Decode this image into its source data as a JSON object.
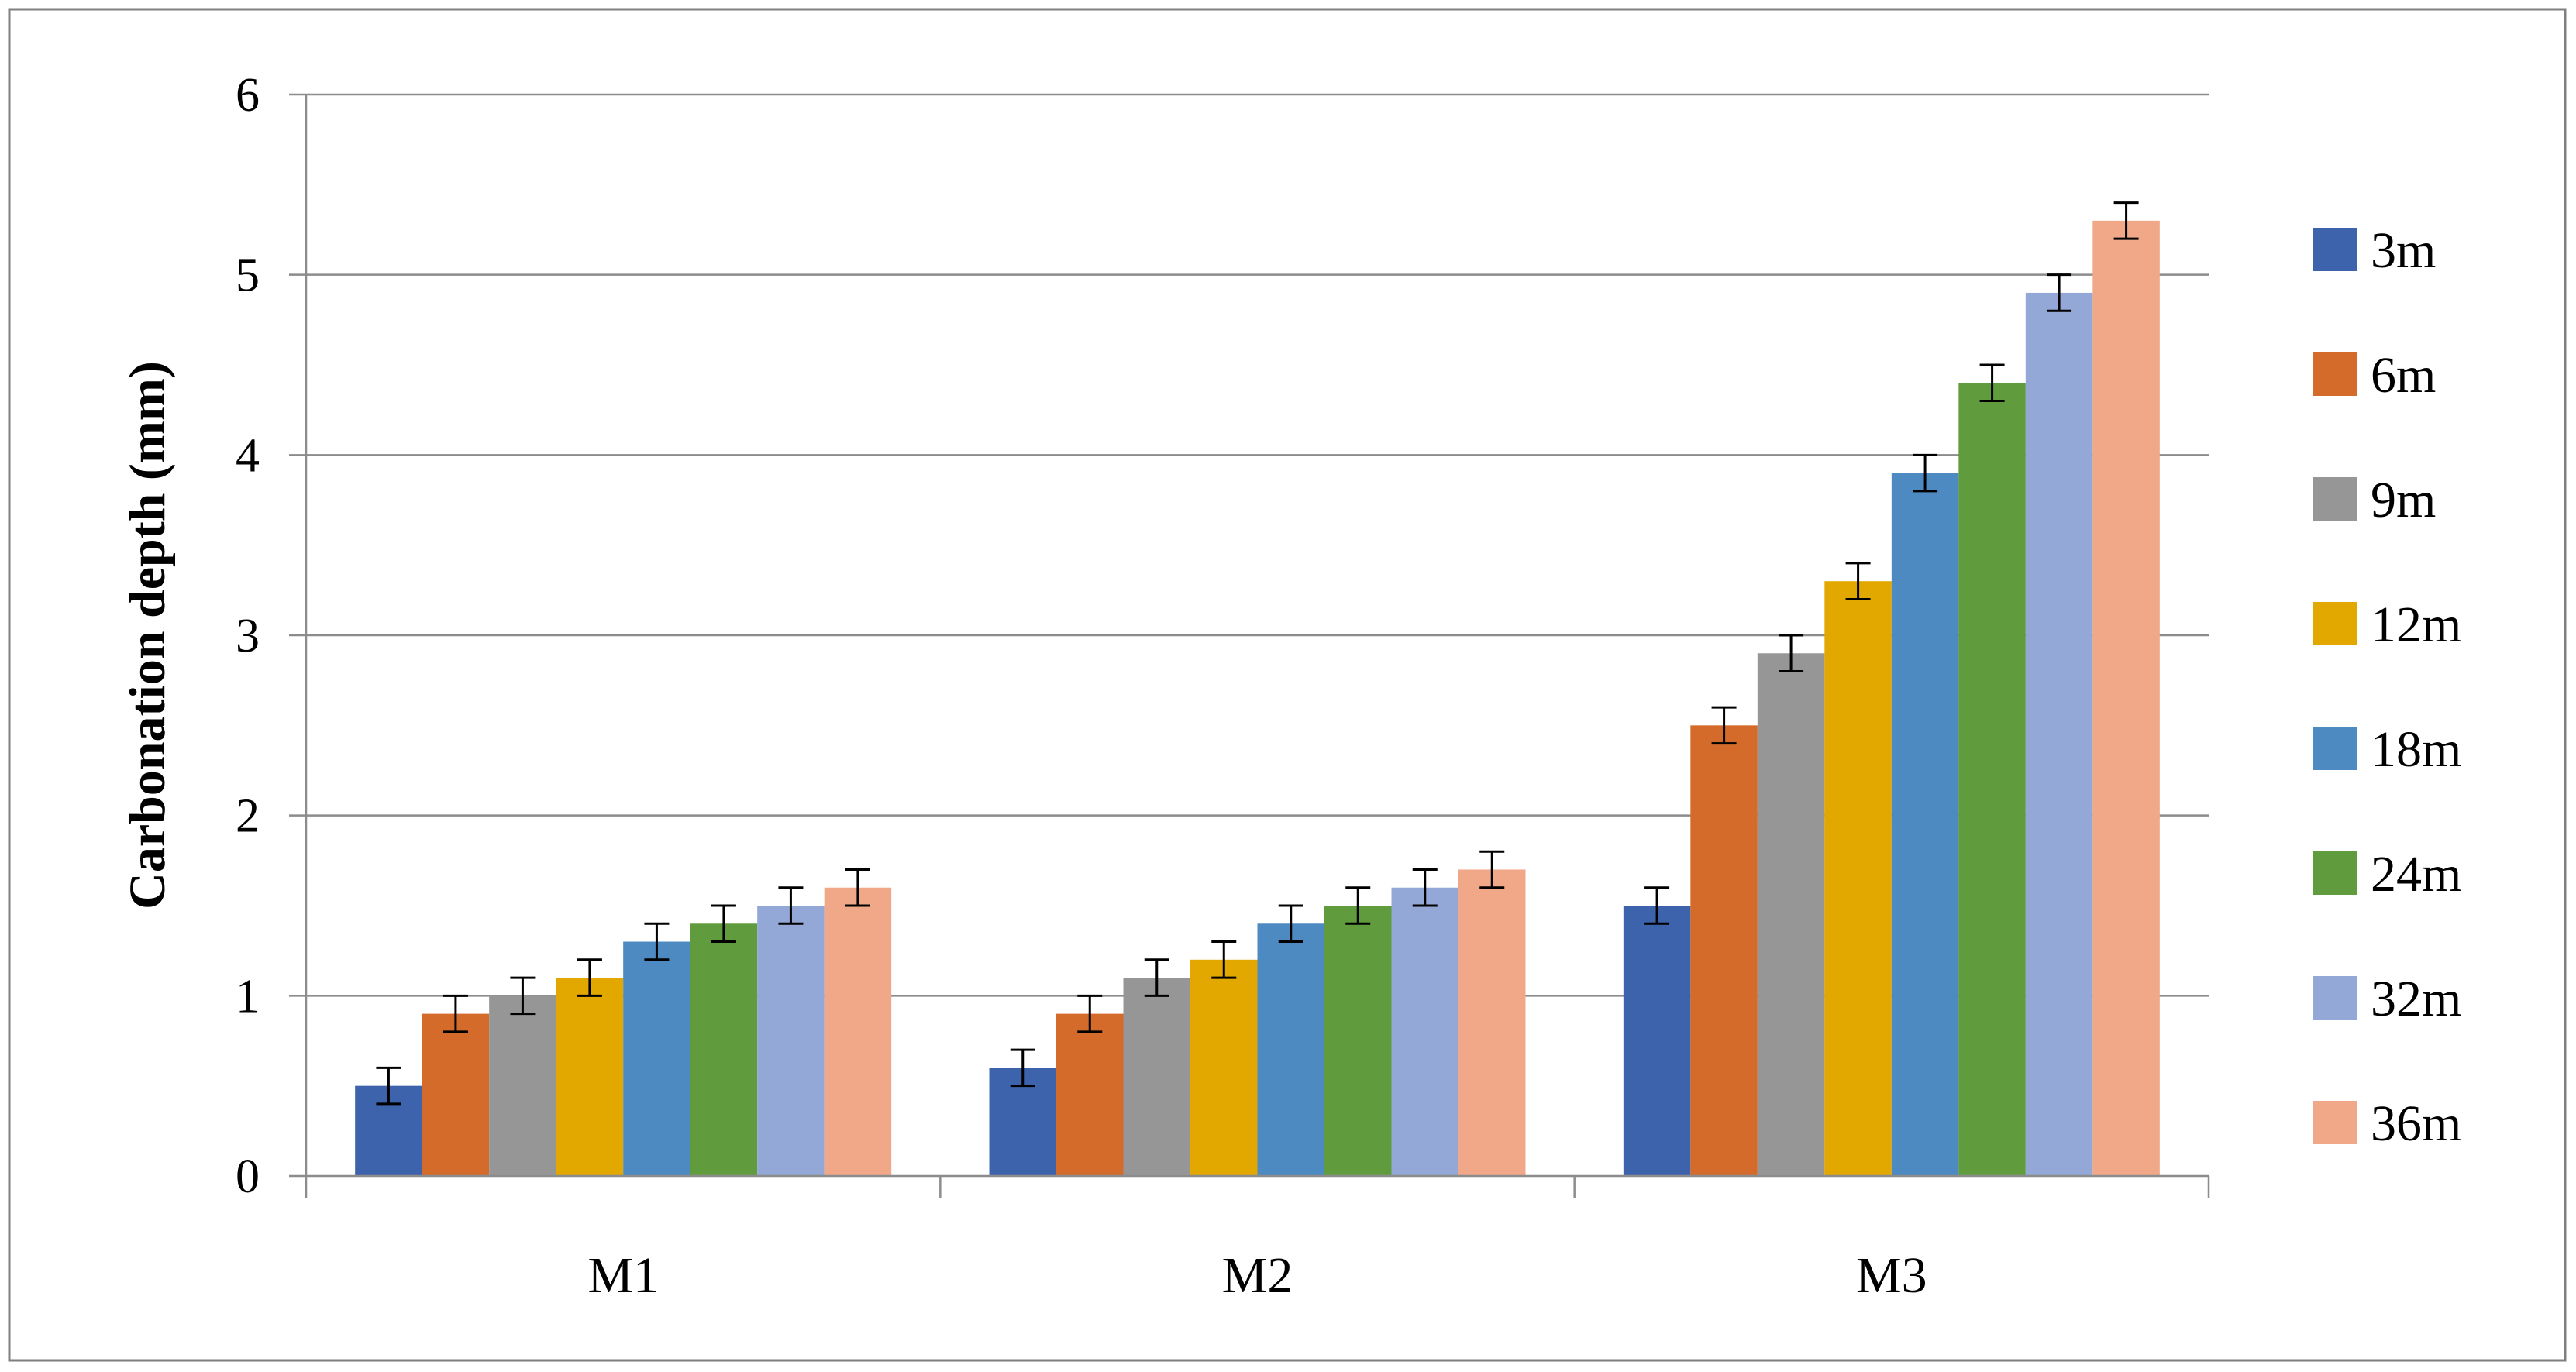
{
  "chart_data": {
    "type": "bar",
    "categories": [
      "M1",
      "M2",
      "M3"
    ],
    "ylabel": "Carbonation depth (mm)",
    "xlabel": "",
    "ylim": [
      0,
      6
    ],
    "yticks": [
      0,
      1,
      2,
      3,
      4,
      5,
      6
    ],
    "grid": true,
    "legend_position": "right",
    "error_bars": true,
    "series": [
      {
        "name": "3m",
        "color": "#3e63ad",
        "values": [
          0.5,
          0.6,
          1.5
        ],
        "errors": [
          0.1,
          0.1,
          0.1
        ]
      },
      {
        "name": "6m",
        "color": "#d46b2b",
        "values": [
          0.9,
          0.9,
          2.5
        ],
        "errors": [
          0.1,
          0.1,
          0.1
        ]
      },
      {
        "name": "9m",
        "color": "#969696",
        "values": [
          1.0,
          1.1,
          2.9
        ],
        "errors": [
          0.1,
          0.1,
          0.1
        ]
      },
      {
        "name": "12m",
        "color": "#e2a800",
        "values": [
          1.1,
          1.2,
          3.3
        ],
        "errors": [
          0.1,
          0.1,
          0.1
        ]
      },
      {
        "name": "18m",
        "color": "#4d8ac2",
        "values": [
          1.3,
          1.4,
          3.9
        ],
        "errors": [
          0.1,
          0.1,
          0.1
        ]
      },
      {
        "name": "24m",
        "color": "#609c3e",
        "values": [
          1.4,
          1.5,
          4.4
        ],
        "errors": [
          0.1,
          0.1,
          0.1
        ]
      },
      {
        "name": "32m",
        "color": "#93a8d6",
        "values": [
          1.5,
          1.6,
          4.9
        ],
        "errors": [
          0.1,
          0.1,
          0.1
        ]
      },
      {
        "name": "36m",
        "color": "#f0a889",
        "values": [
          1.6,
          1.7,
          5.3
        ],
        "errors": [
          0.1,
          0.1,
          0.1
        ]
      }
    ]
  }
}
